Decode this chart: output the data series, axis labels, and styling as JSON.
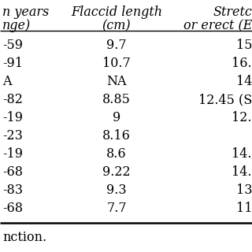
{
  "col1_header": [
    "n years",
    "nge)"
  ],
  "col2_header": [
    "Flaccid length",
    "(cm)"
  ],
  "col3_header": [
    "Stretc",
    "or erect (E"
  ],
  "col1_values": [
    "-59",
    "-91",
    "A",
    "-82",
    "-19",
    "-23",
    "-19",
    "-68",
    "-83",
    "-68"
  ],
  "col2_values": [
    "9.7",
    "10.7",
    "NA",
    "8.85",
    "9",
    "8.16",
    "8.6",
    "9.22",
    "9.3",
    "7.7"
  ],
  "col3_values": [
    "15",
    "16.",
    "14",
    "12.45 (S",
    "12.",
    "",
    "14.",
    "14.",
    "13",
    "11"
  ],
  "footer": "nction.",
  "bg_color": "#ffffff",
  "font_size": 11.5,
  "header_font_size": 11.5
}
